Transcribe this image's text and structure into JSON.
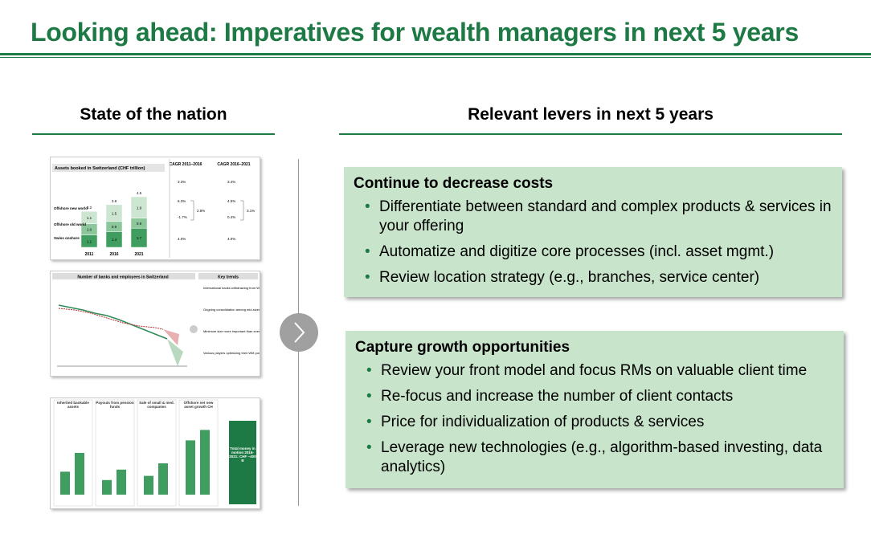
{
  "title": "Looking ahead: Imperatives for wealth managers in next 5 years",
  "left": {
    "heading": "State of the nation",
    "assets": {
      "title": "Assets booked in Switzerland (CHF trillion)",
      "cagr_headers": [
        "CAGR 2011–2016",
        "CAGR 2016–2021"
      ],
      "years": [
        "2011",
        "2016",
        "2021"
      ],
      "totals": [
        "3.2",
        "3.8",
        "4.5"
      ],
      "segments": [
        {
          "name": "Offshore new world",
          "values": [
            "1.1",
            "1.5",
            "1.9"
          ],
          "cagr": [
            "6.3%",
            "4.5%"
          ]
        },
        {
          "name": "Offshore old world",
          "values": [
            "1.0",
            "0.9",
            "0.9"
          ],
          "cagr": [
            "-1.7%",
            "0.4%"
          ]
        },
        {
          "name": "Swiss onshore",
          "values": [
            "1.1",
            "1.4",
            "1.7"
          ],
          "cagr": [
            "4.0%",
            "4.0%"
          ]
        }
      ],
      "total_cagr": [
        "3.3%",
        "3.4%"
      ],
      "offshore_cagr": [
        "2.8%",
        "3.1%"
      ]
    },
    "banks": {
      "title": "Number of banks and employees in Switzerland",
      "key_trends": "Key trends",
      "trends": [
        "International banks withdrawing from WM in Switzerland",
        "Ongoing consolidation among mid-sized players",
        "Minimum size more important than ever",
        "Various players optimizing their WM portfolio"
      ]
    },
    "money": {
      "headers": [
        "Inherited bankable assets",
        "Payouts from pension funds",
        "Sale of small & med. companies",
        "Offshore net new asset growth CH"
      ],
      "total": "Total money in motion 2016-2021: CHF ~400 B"
    }
  },
  "right": {
    "heading": "Relevant levers in next 5 years",
    "boxes": [
      {
        "title": "Continue to decrease costs",
        "bullets": [
          "Differentiate between standard and complex products & services in your offering",
          "Automatize and digitize core processes (incl. asset mgmt.)",
          "Review location strategy (e.g., branches, service center)"
        ]
      },
      {
        "title": "Capture growth opportunities",
        "bullets": [
          "Review your front model and focus RMs on valuable client time",
          "Re-focus and increase the number of client contacts",
          "Price for individualization of products & services",
          "Leverage new technologies (e.g., algorithm-based investing, data analytics)"
        ]
      }
    ]
  }
}
